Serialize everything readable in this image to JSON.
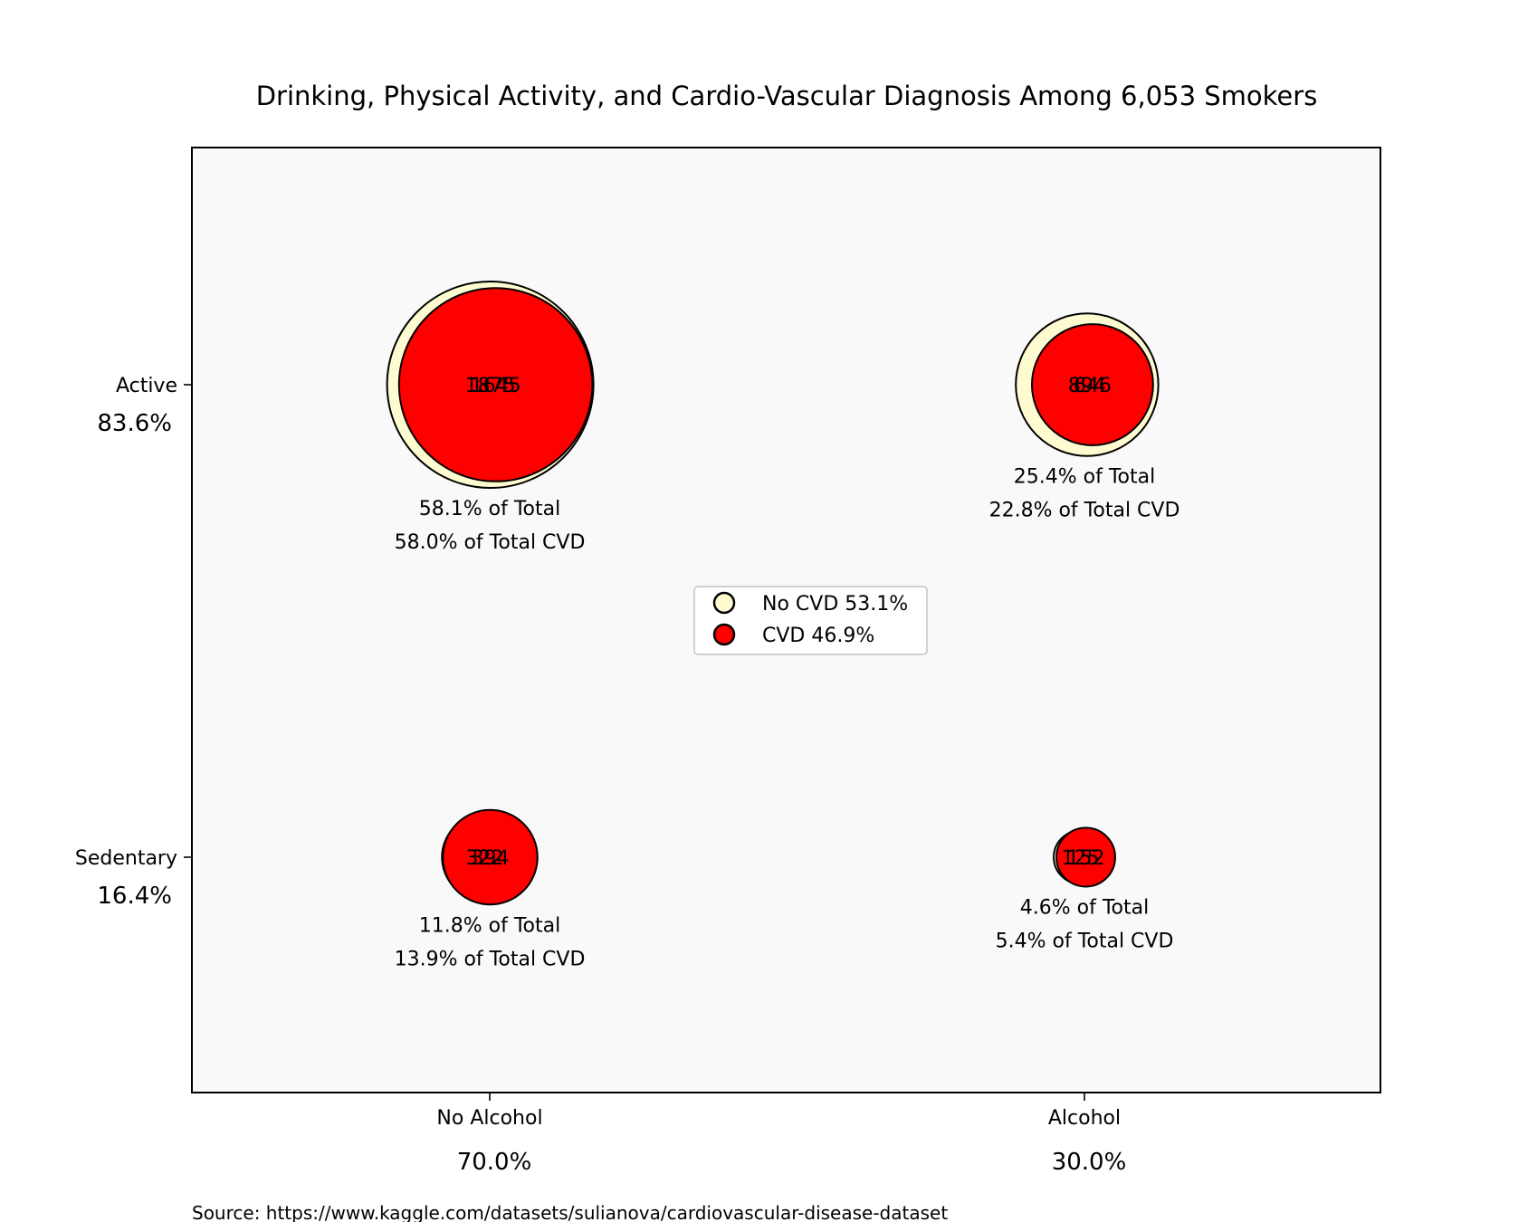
{
  "chart_data": {
    "type": "bubble-matrix",
    "title": "Drinking, Physical Activity, and Cardio-Vascular Diagnosis Among 6,053 Smokers",
    "source": "Source: https://www.kaggle.com/datasets/sulianova/cardiovascular-disease-dataset",
    "x_categories": [
      {
        "label": "No Alcohol",
        "percent": "70.0%"
      },
      {
        "label": "Alcohol",
        "percent": "30.0%"
      }
    ],
    "y_categories": [
      {
        "label": "Active",
        "percent": "83.6%"
      },
      {
        "label": "Sedentary",
        "percent": "16.4%"
      }
    ],
    "series": [
      {
        "name": "No CVD 53.1%",
        "color": "#FFFBD0"
      },
      {
        "name": "CVD 46.9%",
        "color": "#FF0000"
      }
    ],
    "cells": [
      {
        "x": "No Alcohol",
        "y": "Active",
        "no_cvd": 1875,
        "cvd": 1645,
        "pct_total": "58.1% of Total",
        "pct_cvd": "58.0% of Total CVD"
      },
      {
        "x": "Alcohol",
        "y": "Active",
        "no_cvd": 894,
        "cvd": 646,
        "pct_total": "25.4% of Total",
        "pct_cvd": "22.8% of Total CVD"
      },
      {
        "x": "No Alcohol",
        "y": "Sedentary",
        "no_cvd": 322,
        "cvd": 394,
        "pct_total": "11.8% of Total",
        "pct_cvd": "13.9% of Total CVD"
      },
      {
        "x": "Alcohol",
        "y": "Sedentary",
        "no_cvd": 125,
        "cvd": 152,
        "pct_total": "4.6% of Total",
        "pct_cvd": "5.4% of Total CVD"
      }
    ],
    "legend_placement": "center",
    "grid": false,
    "plot_background": "#F9F9F9"
  }
}
